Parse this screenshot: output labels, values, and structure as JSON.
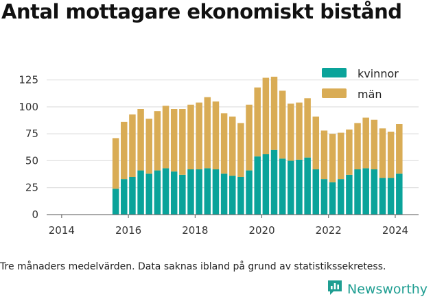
{
  "title": "Antal mottagare ekonomiskt bistånd",
  "footnote": "Tre månaders medelvärden. Data saknas ibland på grund av statistikssekretess.",
  "brand": "Newsworthy",
  "colors": {
    "kvinnor": "#0aa39a",
    "man": "#d9ac55",
    "grid": "#d9d9d9",
    "brand": "#1f9e92"
  },
  "chart_data": {
    "type": "bar",
    "stacked": true,
    "ylim": [
      0,
      140
    ],
    "xlim": [
      2013.55,
      2024.7
    ],
    "yticks": [
      0,
      25,
      50,
      75,
      100,
      125
    ],
    "xticks": [
      2014,
      2016,
      2018,
      2020,
      2022,
      2024
    ],
    "legend_position": "top-right",
    "x": [
      2015.62,
      2015.87,
      2016.12,
      2016.37,
      2016.62,
      2016.87,
      2017.12,
      2017.37,
      2017.62,
      2017.87,
      2018.12,
      2018.37,
      2018.62,
      2018.87,
      2019.12,
      2019.37,
      2019.62,
      2019.87,
      2020.12,
      2020.37,
      2020.62,
      2020.87,
      2021.12,
      2021.37,
      2021.62,
      2021.87,
      2022.12,
      2022.37,
      2022.62,
      2022.87,
      2023.12,
      2023.37,
      2023.62,
      2023.87,
      2024.12
    ],
    "series": [
      {
        "name": "kvinnor",
        "values": [
          24,
          33,
          35,
          41,
          38,
          41,
          43,
          40,
          37,
          42,
          42,
          43,
          42,
          38,
          36,
          35,
          41,
          54,
          56,
          60,
          52,
          50,
          51,
          53,
          42,
          33,
          30,
          33,
          37,
          42,
          43,
          42,
          34,
          34,
          38
        ]
      },
      {
        "name": "män",
        "values": [
          47,
          53,
          58,
          57,
          51,
          55,
          58,
          58,
          61,
          60,
          62,
          66,
          63,
          56,
          55,
          50,
          61,
          64,
          71,
          68,
          63,
          53,
          53,
          55,
          49,
          45,
          45,
          43,
          42,
          43,
          47,
          46,
          46,
          43,
          46
        ]
      }
    ]
  }
}
